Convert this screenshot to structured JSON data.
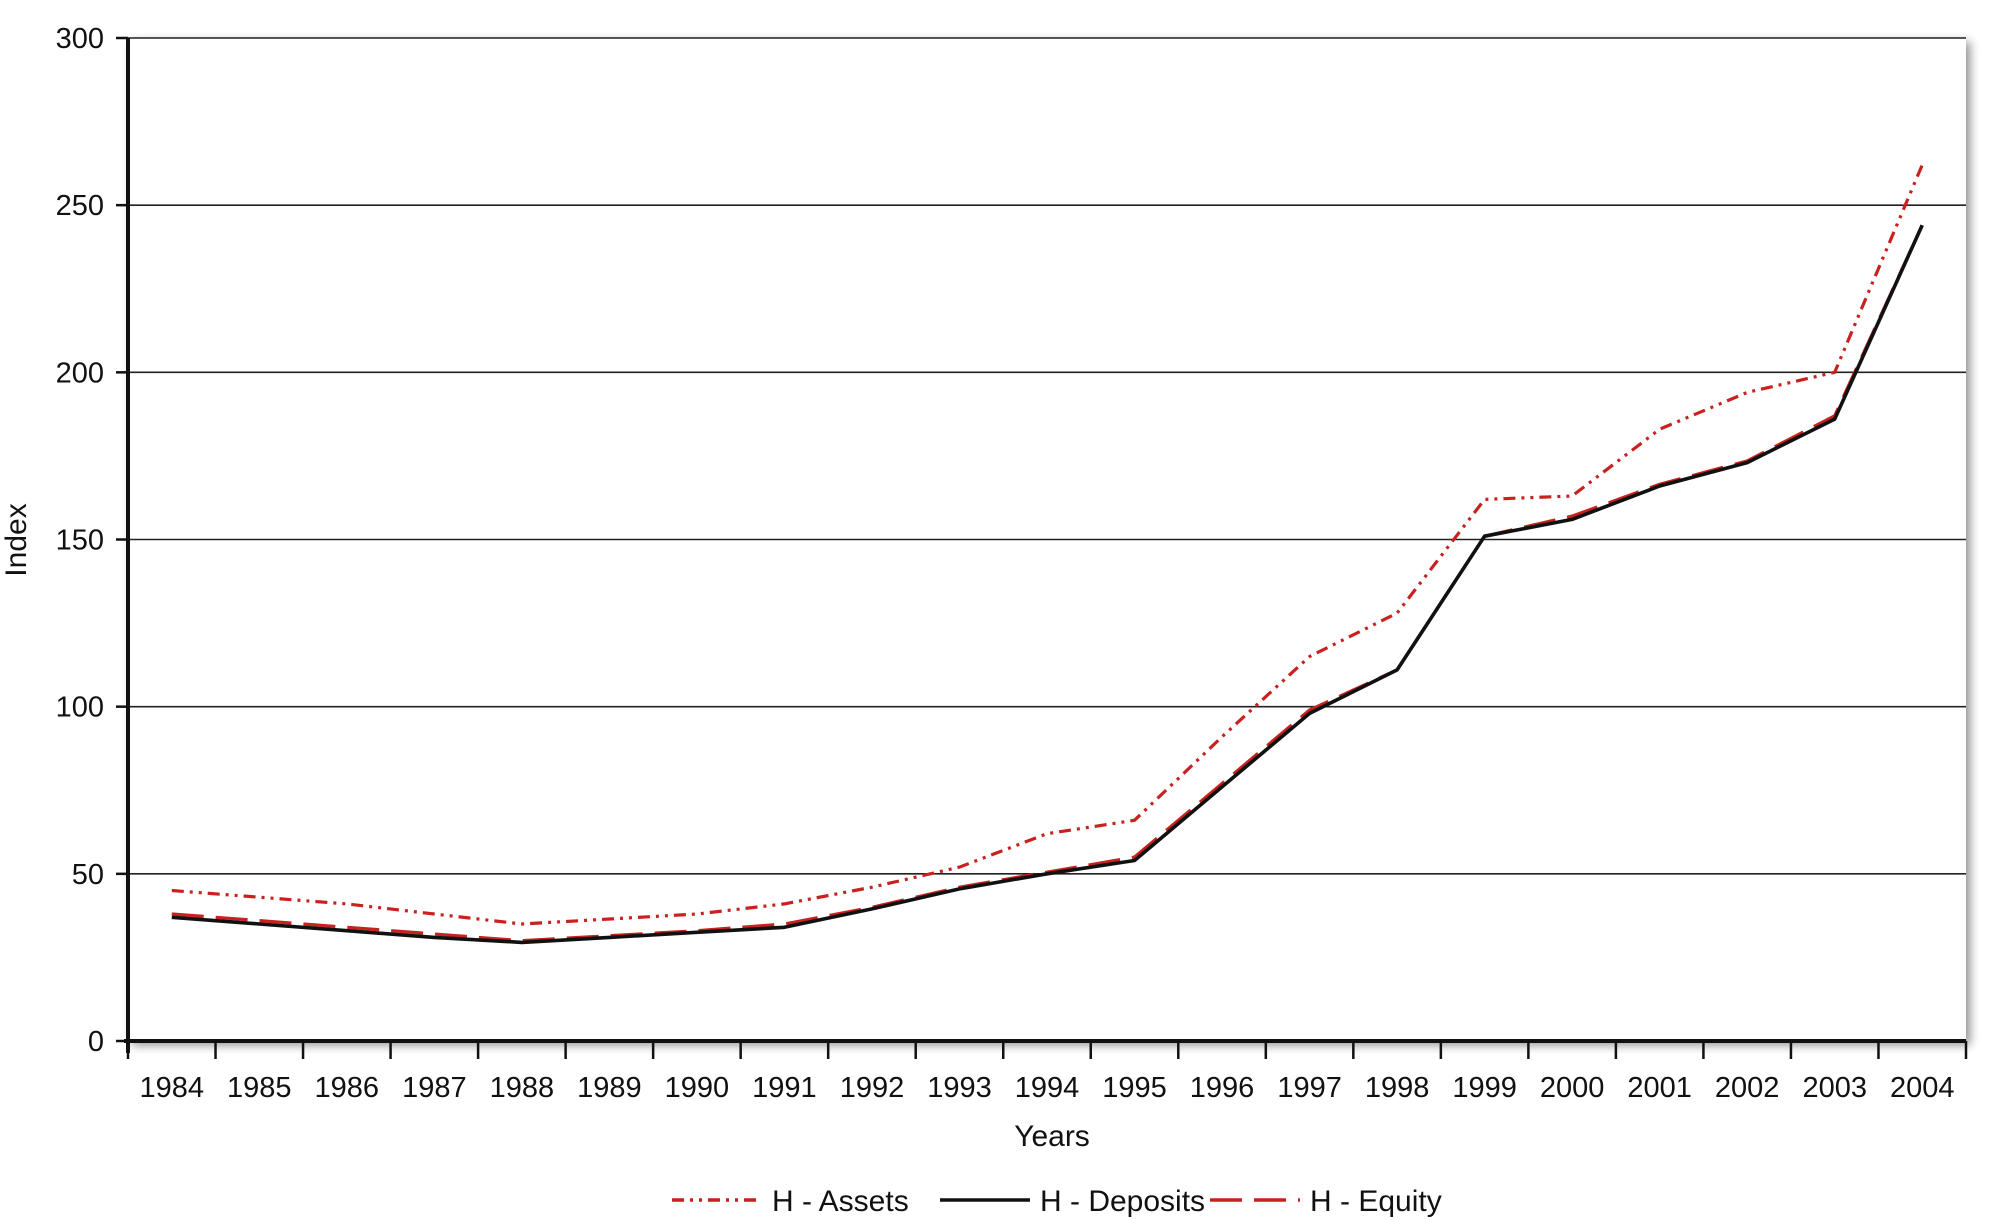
{
  "chart_data": {
    "type": "line",
    "xlabel": "Years",
    "ylabel": "Index",
    "ylim": [
      0,
      300
    ],
    "yticks": [
      "0",
      "50",
      "100",
      "150",
      "200",
      "250",
      "300"
    ],
    "categories": [
      "1984",
      "1985",
      "1986",
      "1987",
      "1988",
      "1989",
      "1990",
      "1991",
      "1992",
      "1993",
      "1994",
      "1995",
      "1996",
      "1997",
      "1998",
      "1999",
      "2000",
      "2001",
      "2002",
      "2003",
      "2004"
    ],
    "grid": true,
    "legend_position": "bottom",
    "series": [
      {
        "name": "H - Assets",
        "color": "#c8211f",
        "style": "dash-dot-dot",
        "values": [
          45,
          43,
          41,
          38,
          35,
          36.5,
          38,
          41,
          46,
          52,
          62,
          66,
          91,
          115,
          128,
          162,
          163,
          183,
          194,
          200,
          262
        ]
      },
      {
        "name": "H - Deposits",
        "color": "#111111",
        "style": "solid",
        "values": [
          37,
          35,
          33,
          31,
          29.5,
          31,
          32.5,
          34,
          39.5,
          45.5,
          50,
          54,
          76,
          98,
          111,
          151,
          156,
          166,
          173,
          186,
          244
        ]
      },
      {
        "name": "H - Equity",
        "color": "#c8211f",
        "style": "long-dash",
        "values": [
          38,
          36,
          34,
          32,
          30,
          31.5,
          33,
          35,
          40,
          46,
          50.5,
          55,
          77,
          99,
          111,
          151,
          157,
          166.5,
          173.5,
          187,
          244
        ]
      }
    ]
  }
}
